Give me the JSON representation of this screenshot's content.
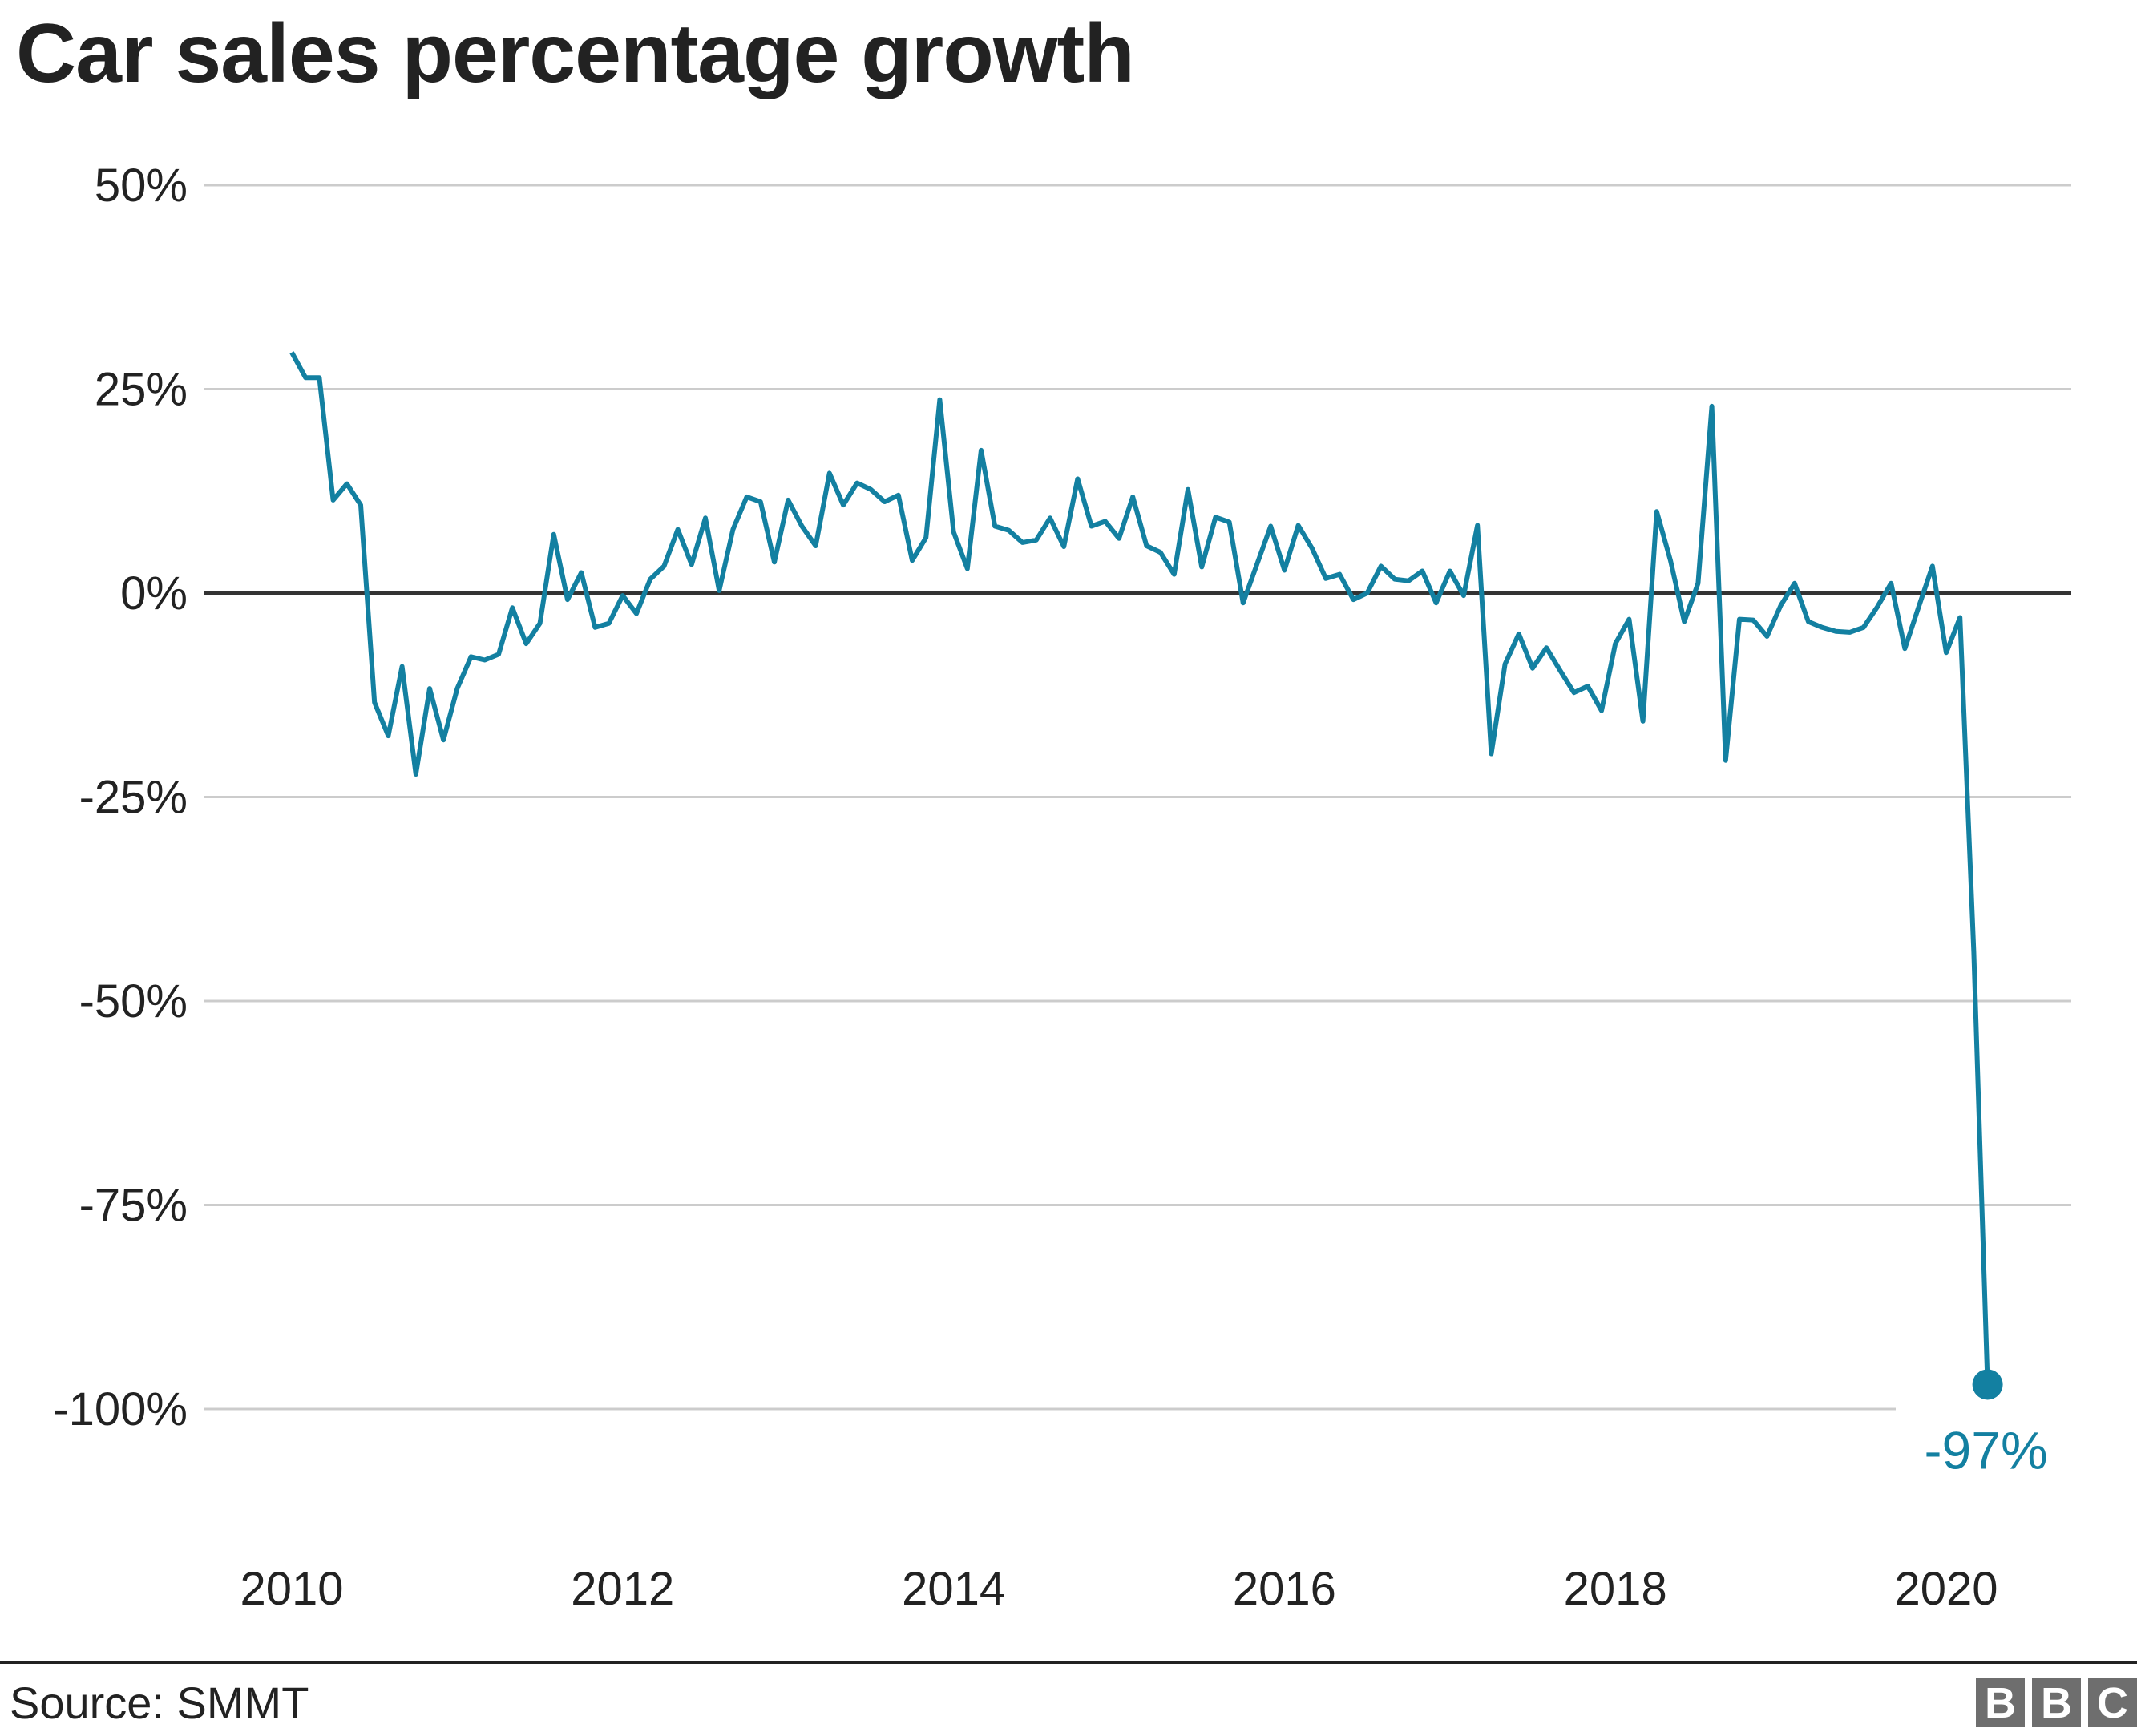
{
  "chart_data": {
    "type": "line",
    "title": "Car sales percentage growth",
    "xlabel": "",
    "ylabel": "",
    "ylim": [
      -100,
      50
    ],
    "yticks": [
      50,
      25,
      0,
      -25,
      -50,
      -75,
      -100
    ],
    "ytick_labels": [
      "50%",
      "25%",
      "0%",
      "-25%",
      "-50%",
      "-75%",
      "-100%"
    ],
    "xticks": [
      "2010",
      "2012",
      "2014",
      "2016",
      "2018",
      "2020"
    ],
    "x_start": "2010-01",
    "x_end": "2020-04",
    "x_frequency": "monthly",
    "grid": true,
    "line_color": "#1380A1",
    "annotation": {
      "label": "-97%",
      "value": -97,
      "date": "2020-04"
    },
    "values": [
      29.5,
      26.4,
      26.4,
      11.4,
      13.4,
      10.8,
      -13.4,
      -17.5,
      -9.0,
      -22.2,
      -11.7,
      -18.0,
      -11.7,
      -7.8,
      -8.2,
      -7.5,
      -1.8,
      -6.2,
      -3.7,
      7.2,
      -0.8,
      2.5,
      -4.2,
      -3.7,
      -0.3,
      -2.5,
      1.7,
      3.3,
      7.8,
      3.5,
      9.2,
      0.3,
      7.8,
      11.8,
      11.2,
      3.8,
      11.4,
      8.2,
      5.8,
      14.7,
      10.8,
      13.5,
      12.7,
      11.2,
      12.0,
      4.0,
      6.8,
      23.7,
      7.5,
      3.0,
      17.5,
      8.2,
      7.7,
      6.2,
      6.5,
      9.2,
      5.7,
      14.0,
      8.2,
      8.8,
      6.7,
      11.8,
      5.8,
      5.0,
      2.3,
      12.7,
      3.2,
      9.3,
      8.7,
      -1.2,
      3.5,
      8.2,
      2.8,
      8.3,
      5.5,
      1.8,
      2.3,
      -0.8,
      0.0,
      3.3,
      1.7,
      1.5,
      2.7,
      -1.2,
      2.7,
      -0.3,
      8.3,
      -19.7,
      -8.7,
      -5.0,
      -9.2,
      -6.7,
      -9.5,
      -12.2,
      -11.4,
      -14.4,
      -6.2,
      -3.2,
      -15.7,
      10.0,
      4.0,
      -3.5,
      1.2,
      22.9,
      -20.5,
      -3.2,
      -3.3,
      -5.3,
      -1.5,
      1.2,
      -3.5,
      -4.2,
      -4.7,
      -4.8,
      -4.2,
      -1.7,
      1.2,
      -6.8,
      -1.7,
      3.3,
      -7.3,
      -3.0,
      -44.0,
      -97.0
    ]
  },
  "footer": {
    "source": "Source: SMMT",
    "logo": [
      "B",
      "B",
      "C"
    ]
  }
}
